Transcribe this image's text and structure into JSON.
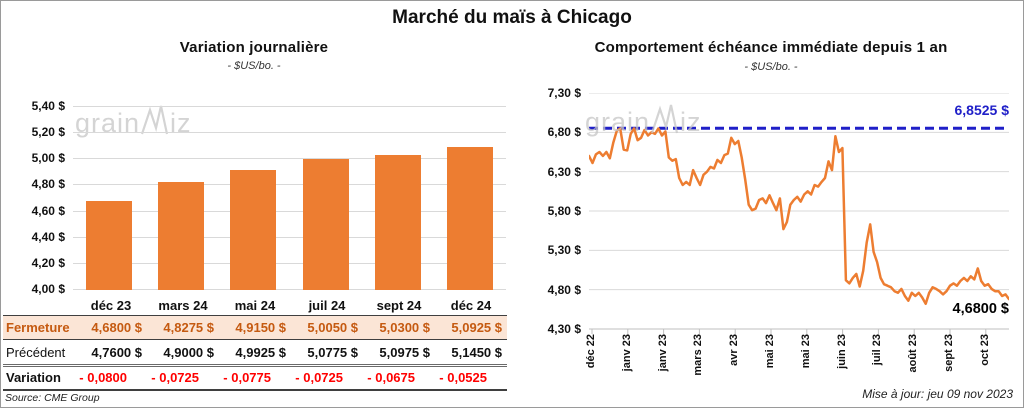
{
  "page": {
    "title": "Marché du maïs à Chicago",
    "source": "Source: CME Group",
    "updated": "Mise à jour: jeu 09 nov 2023",
    "watermark": {
      "part1": "grain",
      "part2": "iz"
    }
  },
  "left_chart": {
    "title": "Variation journalière",
    "subtitle": "- $US/bo. -"
  },
  "right_chart": {
    "title": "Comportement échéance immédiate depuis 1 an",
    "subtitle": "- $US/bo. -",
    "ref_line_label": "6,8525 $",
    "last_value_label": "4,6800 $"
  },
  "table": {
    "columns": [
      "déc 23",
      "mars 24",
      "mai 24",
      "juil 24",
      "sept 24",
      "déc 24"
    ],
    "rows": [
      {
        "label": "Fermeture",
        "style": "close",
        "values": [
          "4,6800 $",
          "4,8275 $",
          "4,9150 $",
          "5,0050 $",
          "5,0300 $",
          "5,0925 $"
        ]
      },
      {
        "label": "Précédent",
        "style": "prev",
        "values": [
          "4,7600 $",
          "4,9000 $",
          "4,9925 $",
          "5,0775 $",
          "5,0975 $",
          "5,1450 $"
        ]
      },
      {
        "label": "Variation",
        "style": "var",
        "values": [
          "- 0,0800",
          "- 0,0725",
          "- 0,0775",
          "- 0,0725",
          "- 0,0675",
          "- 0,0525"
        ]
      }
    ]
  },
  "colors": {
    "accent_orange": "#ED7D31",
    "ref_blue": "#1F1FC8",
    "negative_red": "#FF0000",
    "close_row_bg": "#FBE5D6",
    "close_row_text": "#C55A11",
    "gridline": "#D9D9D9",
    "axis": "#BFBFBF",
    "watermark": "#C6C6C6"
  },
  "chart_data": [
    {
      "type": "bar",
      "title": "Variation journalière",
      "subtitle": "- $US/bo. -",
      "categories": [
        "déc 23",
        "mars 24",
        "mai 24",
        "juil 24",
        "sept 24",
        "déc 24"
      ],
      "values": [
        4.68,
        4.8275,
        4.915,
        5.005,
        5.03,
        5.0925
      ],
      "ylim": [
        4.0,
        5.4
      ],
      "ytick_labels": [
        "5,40 $",
        "5,20 $",
        "5,00 $",
        "4,80 $",
        "4,60 $",
        "4,40 $",
        "4,20 $",
        "4,00 $"
      ],
      "ytick_values": [
        5.4,
        5.2,
        5.0,
        4.8,
        4.6,
        4.4,
        4.2,
        4.0
      ],
      "bar_color": "#ED7D31",
      "grid": true,
      "legend": false
    },
    {
      "type": "line",
      "title": "Comportement échéance immédiate depuis 1 an",
      "subtitle": "- $US/bo. -",
      "ylim": [
        4.3,
        7.3
      ],
      "ytick_labels": [
        "7,30 $",
        "6,80 $",
        "6,30 $",
        "5,80 $",
        "5,30 $",
        "4,80 $",
        "4,30 $"
      ],
      "ytick_values": [
        7.3,
        6.8,
        6.3,
        5.8,
        5.3,
        4.8,
        4.3
      ],
      "x_labels": [
        "déc 22",
        "janv 23",
        "janv 23",
        "mars 23",
        "avr 23",
        "mai 23",
        "mai 23",
        "juin 23",
        "juil 23",
        "août 23",
        "sept 23",
        "oct 23"
      ],
      "ref_line": {
        "value": 6.8525,
        "label": "6,8525 $",
        "color": "#1F1FC8",
        "style": "dashed"
      },
      "last_point": {
        "value": 4.68,
        "label": "4,6800 $"
      },
      "grid": true,
      "legend": false,
      "series": [
        {
          "name": "échéance immédiate",
          "color": "#ED7D31",
          "values": [
            6.5,
            6.41,
            6.52,
            6.55,
            6.5,
            6.55,
            6.47,
            6.67,
            6.82,
            6.85,
            6.58,
            6.57,
            6.78,
            6.85,
            6.7,
            6.73,
            6.83,
            6.76,
            6.8,
            6.78,
            6.85,
            6.76,
            6.81,
            6.48,
            6.44,
            6.46,
            6.22,
            6.13,
            6.17,
            6.13,
            6.32,
            6.22,
            6.13,
            6.26,
            6.3,
            6.36,
            6.34,
            6.45,
            6.41,
            6.51,
            6.53,
            6.73,
            6.65,
            6.69,
            6.48,
            6.2,
            5.88,
            5.81,
            5.83,
            5.94,
            5.96,
            5.9,
            6.0,
            5.9,
            5.81,
            5.96,
            5.57,
            5.66,
            5.88,
            5.94,
            5.98,
            5.92,
            6.01,
            6.05,
            6.01,
            6.13,
            6.11,
            6.17,
            6.22,
            6.43,
            6.32,
            6.75,
            6.55,
            6.6,
            4.92,
            4.88,
            4.95,
            5.0,
            4.84,
            5.04,
            5.4,
            5.63,
            5.28,
            5.15,
            4.95,
            4.87,
            4.85,
            4.83,
            4.78,
            4.76,
            4.81,
            4.72,
            4.66,
            4.76,
            4.72,
            4.76,
            4.7,
            4.62,
            4.76,
            4.83,
            4.81,
            4.78,
            4.74,
            4.78,
            4.85,
            4.88,
            4.85,
            4.91,
            4.95,
            4.91,
            4.97,
            4.93,
            5.07,
            4.91,
            4.85,
            4.87,
            4.81,
            4.78,
            4.78,
            4.72,
            4.74,
            4.68
          ]
        }
      ]
    }
  ]
}
